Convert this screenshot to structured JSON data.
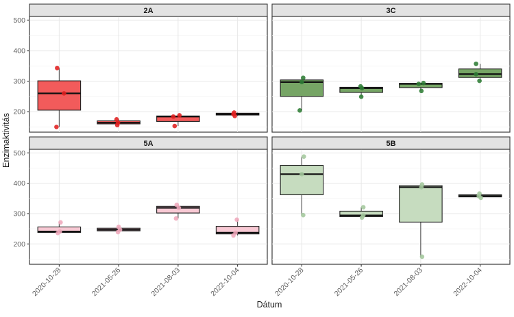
{
  "chart_data": {
    "type": "boxplot",
    "title": "",
    "xlabel": "Dátum",
    "ylabel": "Enzimaktivitás",
    "categories": [
      "2020-10-28",
      "2021-05-26",
      "2021-08-03",
      "2022-10-04"
    ],
    "y_ticks": [
      200,
      300,
      400,
      500
    ],
    "y_minor_ticks": [
      150,
      250,
      350,
      450
    ],
    "ylim": [
      133,
      512
    ],
    "grid": "major-and-minor",
    "legend_position": "none",
    "facets": [
      {
        "label": "2A",
        "box_fill": "#f25b5b",
        "point_color": "#e01f1f",
        "boxes": [
          {
            "category": "2020-10-28",
            "min": 150,
            "q1": 205,
            "median": 260,
            "q3": 301,
            "max": 343,
            "points": [
              150,
              260,
              343
            ],
            "jitter": [
              -4,
              7,
              -3
            ]
          },
          {
            "category": "2021-05-26",
            "min": 156,
            "q1": 160,
            "median": 164,
            "q3": 170,
            "max": 175,
            "points": [
              156,
              164,
              175
            ],
            "jitter": [
              -2,
              -1,
              -3
            ]
          },
          {
            "category": "2021-08-03",
            "min": 153,
            "q1": 168,
            "median": 184,
            "q3": 186,
            "max": 188,
            "points": [
              153,
              184,
              188
            ],
            "jitter": [
              -5,
              -7,
              2
            ]
          },
          {
            "category": "2022-10-04",
            "min": 186,
            "q1": 189,
            "median": 192,
            "q3": 195,
            "max": 197,
            "points": [
              186,
              192,
              197
            ],
            "jitter": [
              -4,
              -6,
              -5
            ]
          }
        ]
      },
      {
        "label": "3C",
        "box_fill": "#76a565",
        "point_color": "#2f7d35",
        "boxes": [
          {
            "category": "2020-10-28",
            "min": 204,
            "q1": 250,
            "median": 297,
            "q3": 304,
            "max": 311,
            "points": [
              204,
              297,
              311
            ],
            "jitter": [
              -3,
              0,
              2
            ]
          },
          {
            "category": "2021-05-26",
            "min": 249,
            "q1": 263,
            "median": 277,
            "q3": 280,
            "max": 283,
            "points": [
              249,
              277,
              283
            ],
            "jitter": [
              0,
              1,
              -1
            ]
          },
          {
            "category": "2021-08-03",
            "min": 268,
            "q1": 279,
            "median": 291,
            "q3": 293,
            "max": 294,
            "points": [
              268,
              291,
              294
            ],
            "jitter": [
              1,
              -3,
              4
            ]
          },
          {
            "category": "2022-10-04",
            "min": 301,
            "q1": 312,
            "median": 323,
            "q3": 340,
            "max": 357,
            "points": [
              301,
              323,
              357
            ],
            "jitter": [
              -1,
              -6,
              -6
            ]
          }
        ]
      },
      {
        "label": "5A",
        "box_fill": "#f8c9d4",
        "point_color": "#efa9bc",
        "boxes": [
          {
            "category": "2020-10-28",
            "min": 236,
            "q1": 238,
            "median": 241,
            "q3": 256,
            "max": 271,
            "points": [
              236,
              241,
              271
            ],
            "jitter": [
              -2,
              1,
              2
            ]
          },
          {
            "category": "2021-05-26",
            "min": 239,
            "q1": 243,
            "median": 247,
            "q3": 252,
            "max": 256,
            "points": [
              239,
              247,
              256
            ],
            "jitter": [
              -1,
              2,
              0
            ]
          },
          {
            "category": "2021-08-03",
            "min": 284,
            "q1": 302,
            "median": 319,
            "q3": 324,
            "max": 329,
            "points": [
              284,
              319,
              329
            ],
            "jitter": [
              -3,
              1,
              -2
            ]
          },
          {
            "category": "2022-10-04",
            "min": 228,
            "q1": 233,
            "median": 237,
            "q3": 258,
            "max": 280,
            "points": [
              228,
              237,
              280
            ],
            "jitter": [
              -6,
              -3,
              -1
            ]
          }
        ]
      },
      {
        "label": "5B",
        "box_fill": "#c6dcbf",
        "point_color": "#a3c79c",
        "boxes": [
          {
            "category": "2020-10-28",
            "min": 295,
            "q1": 362,
            "median": 430,
            "q3": 459,
            "max": 488,
            "points": [
              295,
              430,
              488
            ],
            "jitter": [
              2,
              0,
              3
            ]
          },
          {
            "category": "2021-05-26",
            "min": 287,
            "q1": 290,
            "median": 294,
            "q3": 308,
            "max": 321,
            "points": [
              287,
              294,
              321
            ],
            "jitter": [
              1,
              3,
              3
            ]
          },
          {
            "category": "2021-08-03",
            "min": 158,
            "q1": 272,
            "median": 387,
            "q3": 392,
            "max": 396,
            "points": [
              158,
              387,
              396
            ],
            "jitter": [
              2,
              1,
              2
            ]
          },
          {
            "category": "2022-10-04",
            "min": 352,
            "q1": 355,
            "median": 358,
            "q3": 362,
            "max": 366,
            "points": [
              352,
              358,
              366
            ],
            "jitter": [
              1,
              -2,
              -1
            ]
          }
        ]
      }
    ],
    "style": {
      "background": "#ffffff",
      "panel_bg": "#ffffff",
      "panel_border": "#3a3a3a",
      "strip_fill": "#e3e3e3",
      "strip_border": "#3a3a3a",
      "grid_major": "#e7e7e7",
      "grid_minor": "#f3f3f3",
      "tick_color": "#333333",
      "tick_label_color": "#5c5c5c",
      "whisker_color": "#4a4a4a",
      "box_stroke": "#202020",
      "median_color": "#101010",
      "axis_title_color": "#1a1a1a"
    }
  }
}
